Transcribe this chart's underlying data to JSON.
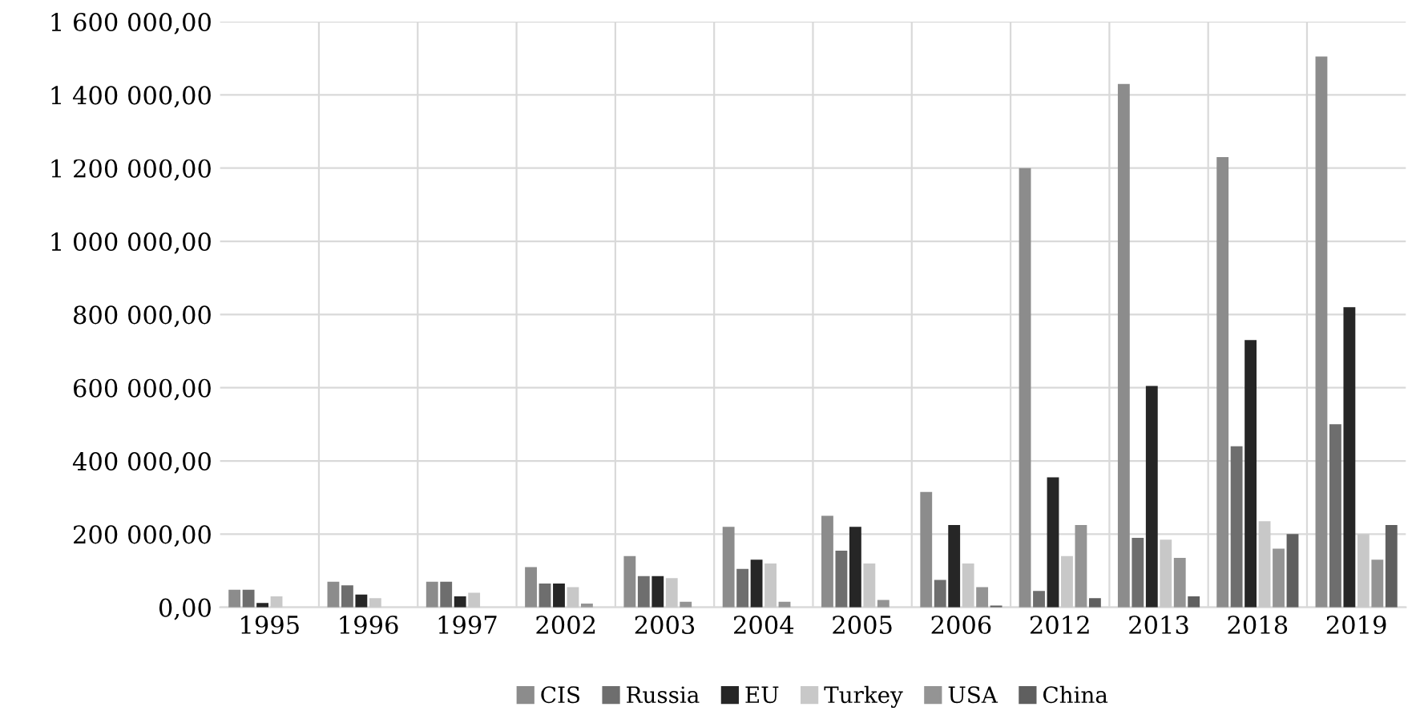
{
  "chart_data": {
    "type": "bar",
    "categories": [
      "1995",
      "1996",
      "1997",
      "2002",
      "2003",
      "2004",
      "2005",
      "2006",
      "2012",
      "2013",
      "2018",
      "2019"
    ],
    "series": [
      {
        "name": "CIS",
        "color": "#8c8c8c",
        "values": [
          48000,
          70000,
          70000,
          110000,
          140000,
          220000,
          250000,
          315000,
          1200000,
          1430000,
          1230000,
          1505000
        ]
      },
      {
        "name": "Russia",
        "color": "#6e6e6e",
        "values": [
          48000,
          60000,
          70000,
          65000,
          85000,
          105000,
          155000,
          75000,
          45000,
          190000,
          440000,
          500000
        ]
      },
      {
        "name": "EU",
        "color": "#262626",
        "values": [
          12000,
          35000,
          30000,
          65000,
          85000,
          130000,
          220000,
          225000,
          355000,
          605000,
          730000,
          820000
        ]
      },
      {
        "name": "Turkey",
        "color": "#c8c8c8",
        "values": [
          30000,
          25000,
          40000,
          55000,
          80000,
          120000,
          120000,
          120000,
          140000,
          185000,
          235000,
          200000
        ]
      },
      {
        "name": "USA",
        "color": "#949494",
        "values": [
          0,
          null,
          0,
          10000,
          15000,
          15000,
          20000,
          55000,
          225000,
          135000,
          160000,
          130000
        ]
      },
      {
        "name": "China",
        "color": "#5f5f5f",
        "values": [
          0,
          0,
          0,
          0,
          0,
          0,
          0,
          5000,
          25000,
          30000,
          200000,
          225000
        ]
      }
    ],
    "ylim": [
      0,
      1600000
    ],
    "yticks": [
      {
        "value": 0,
        "label": "0,00"
      },
      {
        "value": 200000,
        "label": "200 000,00"
      },
      {
        "value": 400000,
        "label": "400 000,00"
      },
      {
        "value": 600000,
        "label": "600 000,00"
      },
      {
        "value": 800000,
        "label": "800 000,00"
      },
      {
        "value": 1000000,
        "label": "1 000 000,00"
      },
      {
        "value": 1200000,
        "label": "1 200 000,00"
      },
      {
        "value": 1400000,
        "label": "1 400 000,00"
      },
      {
        "value": 1600000,
        "label": "1 600 000,00"
      }
    ],
    "grid": true,
    "legend": "bottom"
  }
}
